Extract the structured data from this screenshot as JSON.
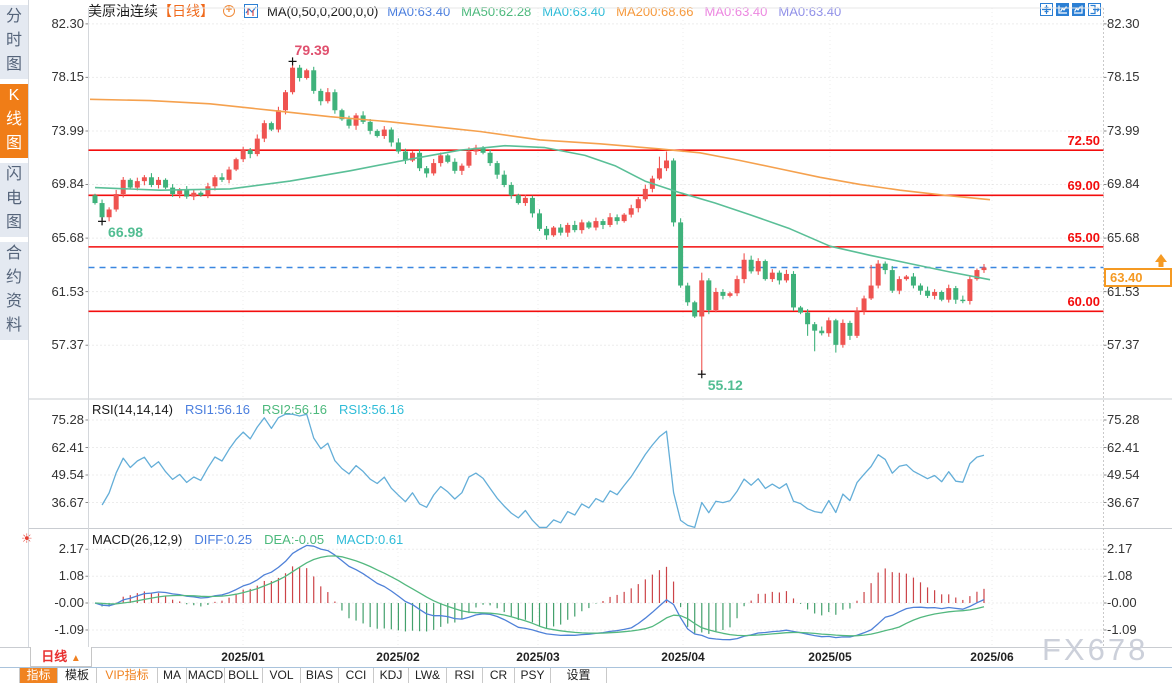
{
  "header": {
    "title": "美原油连续",
    "period_tag": "【日线】",
    "ma_formula": "MA(0,50,0,200,0,0)",
    "ma_tokens": [
      {
        "text": "MA0:63.40",
        "color": "#4a7ede"
      },
      {
        "text": "MA50:62.28",
        "color": "#4cb97c"
      },
      {
        "text": "MA0:63.40",
        "color": "#2fbcd8"
      },
      {
        "text": "MA200:68.66",
        "color": "#f6993c"
      },
      {
        "text": "MA0:63.40",
        "color": "#ec86e0"
      },
      {
        "text": "MA0:63.40",
        "color": "#9090e8"
      }
    ],
    "window_buttons": [
      "move-tool",
      "axis-left-chart",
      "axis-right-chart",
      "pop-out"
    ]
  },
  "sidebar": {
    "tabs": [
      {
        "label": "分时图",
        "active": false
      },
      {
        "label": "K线图",
        "active": true
      },
      {
        "label": "闪电图",
        "active": false
      },
      {
        "label": "合约资料",
        "active": false
      }
    ]
  },
  "price_pane": {
    "axis_labels": [
      "82.30",
      "78.15",
      "73.99",
      "69.84",
      "65.68",
      "61.53",
      "57.37"
    ],
    "hlines": [
      {
        "label": "72.50",
        "value": 72.5
      },
      {
        "label": "69.00",
        "value": 69.0
      },
      {
        "label": "65.00",
        "value": 65.0
      },
      {
        "label": "60.00",
        "value": 60.0
      }
    ],
    "last_price_tag": {
      "label": "63.40",
      "value": 63.4
    },
    "annotations": [
      {
        "text": "79.39",
        "value": 79.39,
        "color": "#e0506e",
        "candle": 28,
        "side": "high"
      },
      {
        "text": "66.98",
        "value": 66.98,
        "color": "#52bd92",
        "candle": 1,
        "side": "low"
      },
      {
        "text": "55.12",
        "value": 55.12,
        "color": "#52bd92",
        "candle": 86,
        "side": "low"
      }
    ]
  },
  "rsi_pane": {
    "formula": "RSI(14,14,14)",
    "tokens": [
      {
        "text": "RSI1:56.16",
        "color": "#4a7ede"
      },
      {
        "text": "RSI2:56.16",
        "color": "#4cb97c"
      },
      {
        "text": "RSI3:56.16",
        "color": "#2fbcd8"
      }
    ],
    "axis_labels": [
      "75.28",
      "62.41",
      "49.54",
      "36.67"
    ]
  },
  "macd_pane": {
    "formula": "MACD(26,12,9)",
    "tokens": [
      {
        "text": "DIFF:0.25",
        "color": "#4a7ede"
      },
      {
        "text": "DEA:-0.05",
        "color": "#4cb97c"
      },
      {
        "text": "MACD:0.61",
        "color": "#2fbcd8"
      }
    ],
    "axis_labels": [
      "2.17",
      "1.08",
      "-0.00",
      "-1.09"
    ]
  },
  "xaxis": {
    "labels": [
      "2025/01",
      "2025/02",
      "2025/03",
      "2025/04",
      "2025/05",
      "2025/06"
    ],
    "period_button": {
      "label": "日线",
      "arrow": "▲"
    }
  },
  "toolbar": {
    "tabs": [
      {
        "label": "指标",
        "active": true
      },
      {
        "label": "模板"
      },
      {
        "label": "VIP指标",
        "vip": true
      },
      {
        "label": "MA"
      },
      {
        "label": "MACD"
      },
      {
        "label": "BOLL"
      },
      {
        "label": "VOL"
      },
      {
        "label": "BIAS"
      },
      {
        "label": "CCI"
      },
      {
        "label": "KDJ"
      },
      {
        "label": "LW&"
      },
      {
        "label": "RSI"
      },
      {
        "label": "CR"
      },
      {
        "label": "PSY"
      },
      {
        "label": "设置"
      }
    ]
  },
  "watermark": "FX678",
  "colors": {
    "candle_up": "#ef5350",
    "candle_down": "#3fb27b",
    "ma50": "#5abf97",
    "ma200": "#f5a14e",
    "rsi": "#64aed8",
    "diff": "#4f81d8",
    "dea": "#53b87f",
    "macd_up": "#cc4448",
    "macd_down": "#43a06c",
    "hline": "#f30d0d",
    "dashed": "#3b87e0",
    "tag": "#f59a23",
    "icon_blue": "#2b7fd4"
  },
  "chart_data": {
    "type": "candlestick_with_indicators",
    "symbol": "美原油连续",
    "period": "日线",
    "price_axis": {
      "gridline_values": [
        82.3,
        78.15,
        73.99,
        69.84,
        65.68,
        61.53,
        57.37
      ]
    },
    "first_open": 69.0,
    "closes": [
      68.4,
      67.3,
      67.9,
      69.1,
      70.2,
      69.6,
      70.1,
      70.4,
      69.8,
      70.2,
      69.6,
      69.1,
      69.4,
      68.9,
      69.2,
      69.0,
      69.7,
      70.4,
      70.2,
      71.0,
      71.8,
      72.5,
      72.2,
      73.4,
      74.6,
      74.1,
      75.6,
      77.0,
      78.9,
      78.1,
      78.7,
      77.1,
      76.3,
      77.0,
      75.6,
      74.9,
      74.4,
      75.2,
      74.7,
      74.0,
      73.6,
      74.1,
      73.1,
      72.4,
      71.7,
      72.3,
      71.1,
      70.7,
      71.5,
      72.1,
      71.6,
      70.9,
      71.3,
      72.4,
      72.7,
      72.3,
      71.5,
      70.6,
      69.8,
      69.0,
      68.4,
      68.8,
      67.6,
      66.4,
      65.9,
      66.5,
      66.1,
      66.7,
      66.3,
      66.9,
      66.5,
      67.0,
      66.7,
      67.3,
      67.0,
      67.5,
      68.0,
      68.7,
      69.5,
      70.3,
      71.1,
      71.7,
      66.9,
      62.0,
      60.7,
      59.6,
      62.4,
      60.1,
      61.5,
      61.2,
      61.4,
      62.5,
      64.0,
      63.1,
      63.9,
      62.5,
      63.0,
      62.4,
      62.9,
      60.3,
      59.9,
      59.0,
      58.5,
      58.3,
      59.3,
      57.4,
      59.1,
      58.1,
      60.0,
      61.0,
      62.0,
      63.7,
      63.2,
      61.6,
      62.5,
      62.7,
      62.0,
      61.6,
      61.2,
      61.5,
      60.9,
      61.8,
      60.9,
      60.8,
      62.5,
      63.2,
      63.4
    ],
    "wick_overrides": {
      "1": {
        "low": 66.98
      },
      "28": {
        "high": 79.39
      },
      "64": {
        "low": 65.55
      },
      "80": {
        "high": 72.0
      },
      "81": {
        "high": 72.4
      },
      "86": {
        "low": 55.12,
        "high": 63.0
      },
      "92": {
        "high": 64.5
      },
      "101": {
        "low": 58.1
      },
      "102": {
        "low": 56.9
      },
      "105": {
        "low": 56.8
      },
      "110": {
        "high": 63.6
      }
    },
    "ma50_points": [
      [
        95,
        69.6
      ],
      [
        160,
        69.4
      ],
      [
        230,
        69.5
      ],
      [
        290,
        70.1
      ],
      [
        350,
        70.9
      ],
      [
        410,
        71.8
      ],
      [
        460,
        72.5
      ],
      [
        505,
        72.85
      ],
      [
        545,
        72.7
      ],
      [
        585,
        72.1
      ],
      [
        615,
        71.3
      ],
      [
        645,
        70.1
      ],
      [
        680,
        69.2
      ],
      [
        715,
        68.4
      ],
      [
        750,
        67.5
      ],
      [
        790,
        66.4
      ],
      [
        830,
        65.05
      ],
      [
        870,
        64.35
      ],
      [
        910,
        63.7
      ],
      [
        950,
        63.05
      ],
      [
        990,
        62.45
      ]
    ],
    "ma200_points": [
      [
        90,
        76.45
      ],
      [
        150,
        76.35
      ],
      [
        210,
        76.1
      ],
      [
        270,
        75.6
      ],
      [
        330,
        75.1
      ],
      [
        390,
        74.7
      ],
      [
        450,
        74.2
      ],
      [
        480,
        73.95
      ],
      [
        540,
        73.3
      ],
      [
        600,
        73.0
      ],
      [
        660,
        72.6
      ],
      [
        700,
        72.3
      ],
      [
        740,
        71.7
      ],
      [
        780,
        71.05
      ],
      [
        820,
        70.4
      ],
      [
        860,
        69.85
      ],
      [
        900,
        69.4
      ],
      [
        945,
        69.0
      ],
      [
        990,
        68.66
      ]
    ],
    "indicator_params": {
      "rsi": [
        14,
        14,
        14
      ],
      "macd": [
        26,
        12,
        9
      ]
    },
    "indicator_last_values": {
      "rsi1": 56.16,
      "rsi2": 56.16,
      "rsi3": 56.16,
      "diff": 0.25,
      "dea": -0.05,
      "macd": 0.61
    }
  }
}
